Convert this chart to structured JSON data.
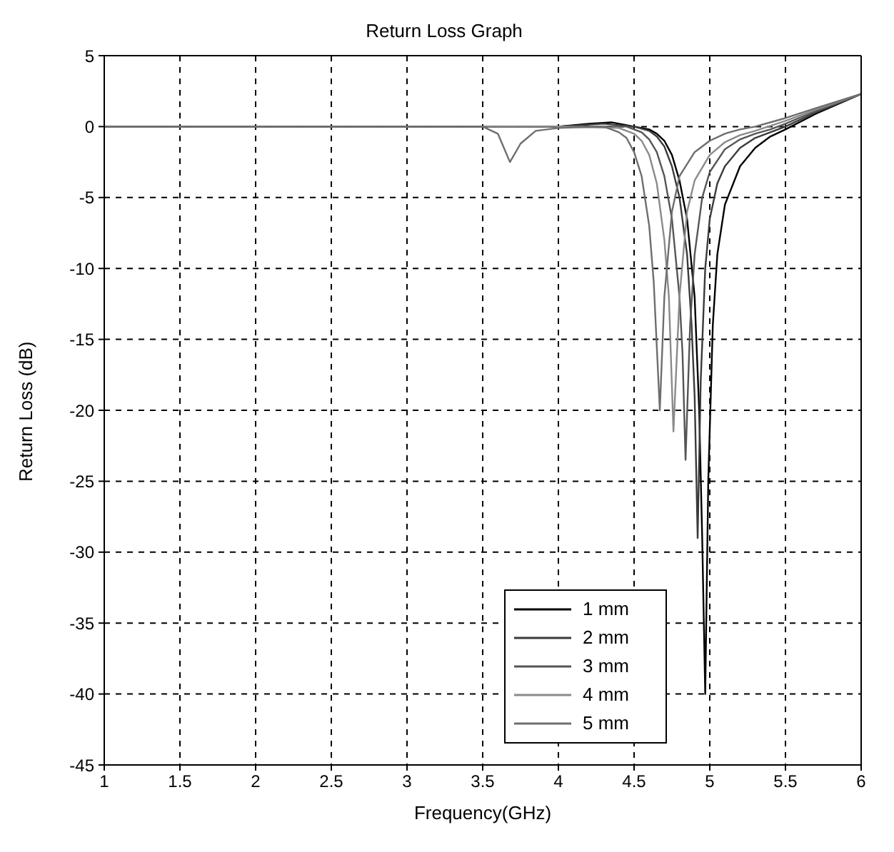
{
  "chart_data": {
    "type": "line",
    "title": "Return Loss Graph",
    "xlabel": "Frequency(GHz)",
    "ylabel": "Return Loss (dB)",
    "xlim": [
      1,
      6
    ],
    "xticks": [
      1,
      1.5,
      2,
      2.5,
      3,
      3.5,
      4,
      4.5,
      5,
      5.5,
      6
    ],
    "ylim": [
      -45,
      5
    ],
    "yticks": [
      5,
      0,
      -5,
      -10,
      -15,
      -20,
      -25,
      -30,
      -35,
      -40,
      -45
    ],
    "grid": true,
    "legend": "bottom",
    "series": [
      {
        "name": "1 mm",
        "color": "#000000",
        "x": [
          1,
          2,
          3,
          3.5,
          4,
          4.2,
          4.35,
          4.5,
          4.6,
          4.65,
          4.7,
          4.75,
          4.8,
          4.85,
          4.9,
          4.93,
          4.95,
          4.97,
          4.99,
          5.02,
          5.05,
          5.1,
          5.2,
          5.3,
          5.4,
          5.5,
          5.7,
          6
        ],
        "values": [
          0,
          0,
          0,
          0,
          0,
          0.2,
          0.3,
          0,
          -0.2,
          -0.5,
          -1,
          -2,
          -3.8,
          -6.5,
          -12,
          -20,
          -29,
          -40,
          -25,
          -14,
          -9,
          -5.5,
          -2.8,
          -1.5,
          -0.7,
          -0.2,
          0.9,
          2.3
        ]
      },
      {
        "name": "2 mm",
        "color": "#3a3a3a",
        "x": [
          1,
          2,
          3,
          3.5,
          4,
          4.3,
          4.5,
          4.6,
          4.65,
          4.7,
          4.75,
          4.8,
          4.85,
          4.88,
          4.9,
          4.92,
          4.94,
          4.97,
          5,
          5.05,
          5.1,
          5.2,
          5.3,
          5.4,
          5.5,
          5.7,
          6
        ],
        "values": [
          0,
          0,
          0,
          0,
          0,
          0.2,
          0,
          -0.3,
          -0.7,
          -1.4,
          -2.8,
          -5,
          -9,
          -14,
          -19,
          -29,
          -18,
          -10,
          -6.5,
          -4,
          -2.8,
          -1.5,
          -0.8,
          -0.4,
          0,
          1.0,
          2.3
        ]
      },
      {
        "name": "3 mm",
        "color": "#555555",
        "x": [
          1,
          2,
          3,
          3.5,
          4,
          4.45,
          4.55,
          4.6,
          4.65,
          4.7,
          4.75,
          4.8,
          4.82,
          4.84,
          4.87,
          4.9,
          4.95,
          5,
          5.1,
          5.2,
          5.3,
          5.4,
          5.5,
          5.7,
          6
        ],
        "values": [
          0,
          0,
          0,
          0,
          0,
          0,
          -0.4,
          -0.9,
          -1.8,
          -3.5,
          -6.5,
          -12,
          -16,
          -23.5,
          -14,
          -9,
          -5,
          -3.2,
          -1.6,
          -0.9,
          -0.5,
          -0.2,
          0.2,
          1.1,
          2.3
        ]
      },
      {
        "name": "4 mm",
        "color": "#8a8a8a",
        "x": [
          1,
          2,
          3,
          3.5,
          4,
          4.4,
          4.5,
          4.55,
          4.6,
          4.65,
          4.7,
          4.73,
          4.76,
          4.8,
          4.85,
          4.9,
          5,
          5.1,
          5.2,
          5.3,
          5.5,
          5.7,
          6
        ],
        "values": [
          0,
          0,
          0,
          0,
          0,
          -0.1,
          -0.5,
          -1.0,
          -2.0,
          -4,
          -8,
          -12,
          -21.5,
          -12,
          -6,
          -3.8,
          -2,
          -1.1,
          -0.6,
          -0.3,
          0.4,
          1.2,
          2.3
        ]
      },
      {
        "name": "5 mm",
        "color": "#6e6e6e",
        "x": [
          1,
          2,
          3,
          3.5,
          3.6,
          3.68,
          3.75,
          3.85,
          4,
          4.3,
          4.4,
          4.45,
          4.5,
          4.55,
          4.6,
          4.63,
          4.67,
          4.7,
          4.75,
          4.8,
          4.9,
          5,
          5.1,
          5.2,
          5.3,
          5.5,
          5.7,
          6
        ],
        "values": [
          0,
          0,
          0,
          0,
          -0.5,
          -2.5,
          -1.2,
          -0.3,
          -0.1,
          0,
          -0.4,
          -0.8,
          -1.8,
          -3.5,
          -7,
          -11,
          -20,
          -12,
          -6,
          -3.5,
          -1.8,
          -1.0,
          -0.5,
          -0.2,
          0,
          0.6,
          1.3,
          2.3
        ]
      }
    ]
  }
}
